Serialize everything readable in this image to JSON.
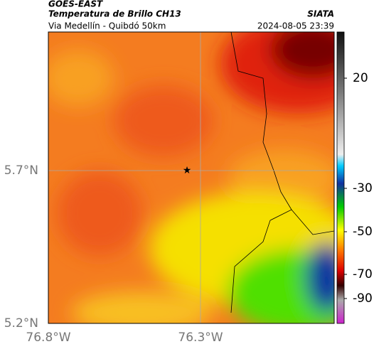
{
  "header": {
    "title": "GOES-EAST",
    "subtitle": "Temperatura de Brillo CH13",
    "location": "Via Medellín - Quibdó 50km",
    "source": "SIATA",
    "timestamp": "2024-08-05 23:39"
  },
  "map": {
    "lat_labels": [
      "5.7°N",
      "5.2°N"
    ],
    "lon_labels": [
      "76.8°W",
      "76.3°W"
    ]
  },
  "colorbar": {
    "ticks": [
      20,
      -30,
      -50,
      -70,
      -90
    ]
  }
}
